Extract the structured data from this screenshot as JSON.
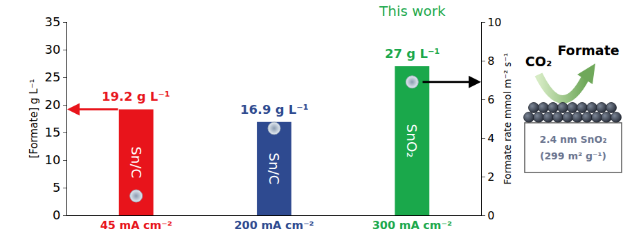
{
  "chart_data": {
    "type": "bar",
    "annotations": [
      {
        "text": "This work",
        "category": "300 mA cm⁻²"
      }
    ],
    "categories": [
      "45 mA cm⁻²",
      "200 mA cm⁻²",
      "300 mA cm⁻²"
    ],
    "ylabel": "[Formate] g L⁻¹",
    "y2label": "Formate rate mmol m⁻² s⁻¹",
    "ylim": [
      0,
      35
    ],
    "yticks": [
      0,
      5,
      10,
      15,
      20,
      25,
      30,
      35
    ],
    "y2lim": [
      0,
      10
    ],
    "y2ticks": [
      0,
      2,
      4,
      6,
      8,
      10
    ],
    "grid": false,
    "series": [
      {
        "type": "bar",
        "colors": [
          "#e8141b",
          "#2e4a90",
          "#1aa84b"
        ],
        "values": [
          19.2,
          16.9,
          27
        ],
        "data_labels": true,
        "value_labels": [
          "19.2 g L⁻¹",
          "16.9 g L⁻¹",
          "27 g L⁻¹"
        ],
        "bar_labels": [
          "Sn/C",
          "Sn/C",
          "SnO₂"
        ]
      },
      {
        "type": "scatter",
        "axis": "y2",
        "marker": "circle",
        "color": "#e4ebf2",
        "values": [
          1.0,
          4.5,
          6.9
        ]
      }
    ]
  },
  "diagram": {
    "reactant": "CO₂",
    "product": "Formate",
    "catalyst": [
      "2.4 nm SnO₂",
      "(299 m² g⁻¹)"
    ]
  }
}
